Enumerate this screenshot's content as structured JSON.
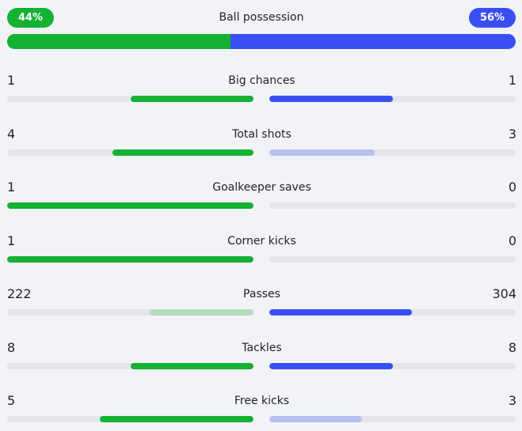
{
  "possession": {
    "title": "Ball possession",
    "home_label": "44%",
    "away_label": "56%",
    "home_value": 44,
    "away_value": 56
  },
  "colors": {
    "home": "#14b133",
    "away": "#3a4ff2",
    "home_light": "#b6dbbf",
    "away_light": "#b9bfee",
    "track": "#e3e5ea"
  },
  "stats": [
    {
      "label": "Big chances",
      "home": "1",
      "away": "1",
      "home_fill": 0.5,
      "away_fill": 0.5,
      "home_dim": false,
      "away_dim": false
    },
    {
      "label": "Total shots",
      "home": "4",
      "away": "3",
      "home_fill": 0.571,
      "away_fill": 0.429,
      "home_dim": false,
      "away_dim": true
    },
    {
      "label": "Goalkeeper saves",
      "home": "1",
      "away": "0",
      "home_fill": 1.0,
      "away_fill": 0.0,
      "home_dim": false,
      "away_dim": false
    },
    {
      "label": "Corner kicks",
      "home": "1",
      "away": "0",
      "home_fill": 1.0,
      "away_fill": 0.0,
      "home_dim": false,
      "away_dim": false
    },
    {
      "label": "Passes",
      "home": "222",
      "away": "304",
      "home_fill": 0.422,
      "away_fill": 0.578,
      "home_dim": true,
      "away_dim": false
    },
    {
      "label": "Tackles",
      "home": "8",
      "away": "8",
      "home_fill": 0.5,
      "away_fill": 0.5,
      "home_dim": false,
      "away_dim": false
    },
    {
      "label": "Free kicks",
      "home": "5",
      "away": "3",
      "home_fill": 0.625,
      "away_fill": 0.375,
      "home_dim": false,
      "away_dim": true
    }
  ]
}
